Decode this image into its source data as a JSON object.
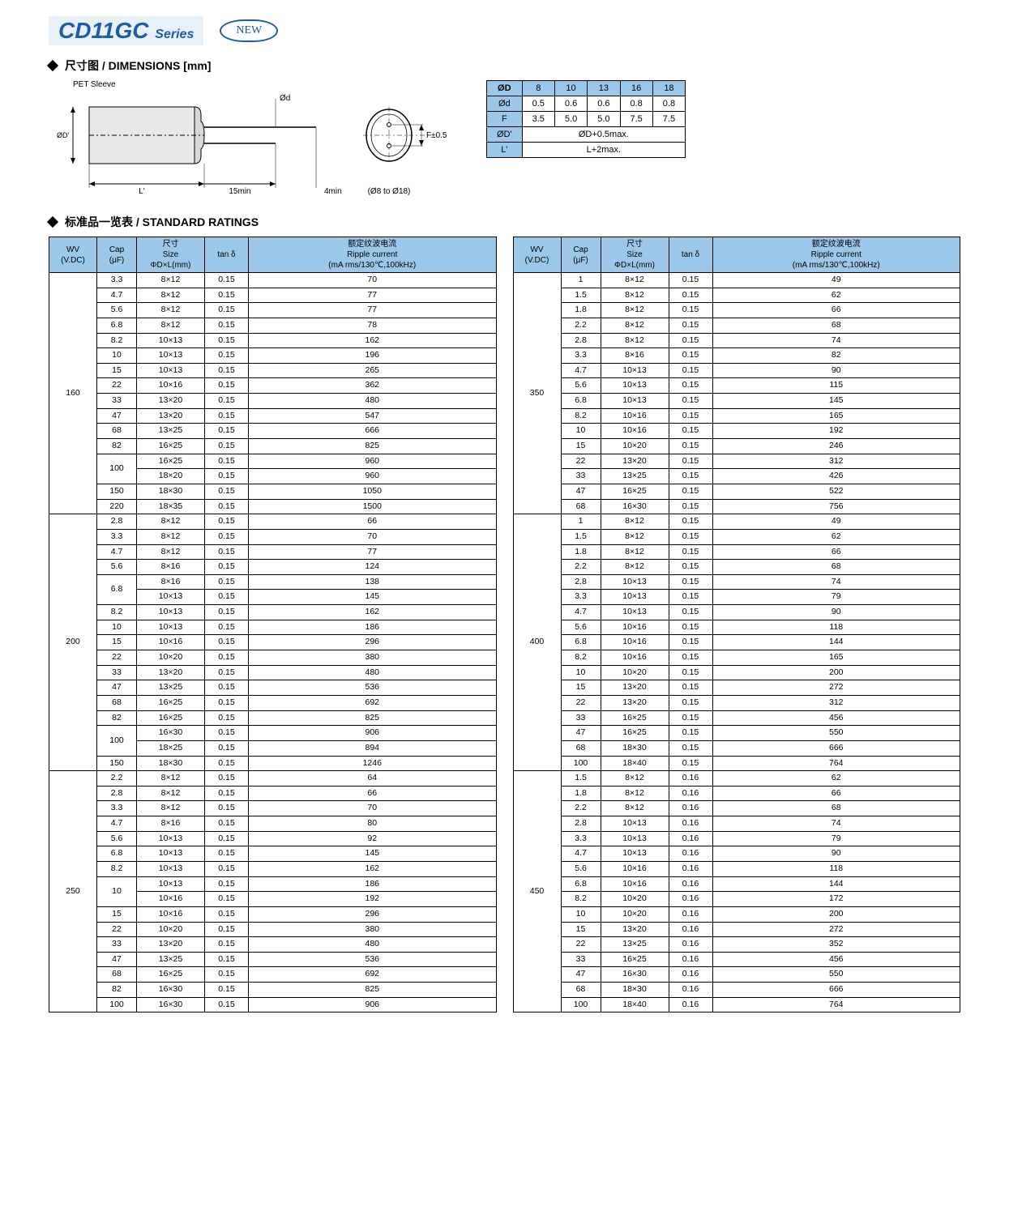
{
  "header": {
    "title_main": "CD11GC",
    "title_sub": "Series",
    "badge": "NEW"
  },
  "section_dimensions": "尺寸图 / DIMENSIONS [mm]",
  "section_ratings": "标准品一览表 / STANDARD RATINGS",
  "pet_label": "PET Sleeve",
  "drawing": {
    "d15": "15min",
    "d4": "4min",
    "L": "L'",
    "OD": "ØD'",
    "Od": "Ød",
    "F": "F±0.5",
    "range": "(Ø8 to Ø18)"
  },
  "dim_table": {
    "headers": [
      "ØD",
      "8",
      "10",
      "13",
      "16",
      "18"
    ],
    "rows": [
      [
        "Ød",
        "0.5",
        "0.6",
        "0.6",
        "0.8",
        "0.8"
      ],
      [
        "F",
        "3.5",
        "5.0",
        "5.0",
        "7.5",
        "7.5"
      ]
    ],
    "spanrows": [
      [
        "ØD'",
        "ØD+0.5max."
      ],
      [
        "L'",
        "L+2max."
      ]
    ]
  },
  "rating_headers": {
    "wv": "WV\n(V.DC)",
    "cap": "Cap\n(μF)",
    "size_top": "尺寸",
    "size_bot": "Size\nΦD×L(mm)",
    "tan": "tan δ",
    "ripple_top": "额定纹波电流",
    "ripple_bot": "Ripple current\n(mA rms/130℃,100kHz)"
  },
  "left_groups": [
    {
      "wv": "160",
      "rows": [
        [
          "3.3",
          "8×12",
          "0.15",
          "70"
        ],
        [
          "4.7",
          "8×12",
          "0.15",
          "77"
        ],
        [
          "5.6",
          "8×12",
          "0.15",
          "77"
        ],
        [
          "6.8",
          "8×12",
          "0.15",
          "78"
        ],
        [
          "8.2",
          "10×13",
          "0.15",
          "162"
        ],
        [
          "10",
          "10×13",
          "0.15",
          "196"
        ],
        [
          "15",
          "10×13",
          "0.15",
          "265"
        ],
        [
          "22",
          "10×16",
          "0.15",
          "362"
        ],
        [
          "33",
          "13×20",
          "0.15",
          "480"
        ],
        [
          "47",
          "13×20",
          "0.15",
          "547"
        ],
        [
          "68",
          "13×25",
          "0.15",
          "666"
        ],
        [
          "82",
          "16×25",
          "0.15",
          "825"
        ],
        [
          "100",
          "16×25",
          "0.15",
          "960",
          "cap2"
        ],
        [
          "",
          "18×20",
          "0.15",
          "960"
        ],
        [
          "150",
          "18×30",
          "0.15",
          "1050"
        ],
        [
          "220",
          "18×35",
          "0.15",
          "1500"
        ]
      ]
    },
    {
      "wv": "200",
      "rows": [
        [
          "2.8",
          "8×12",
          "0.15",
          "66"
        ],
        [
          "3.3",
          "8×12",
          "0.15",
          "70"
        ],
        [
          "4.7",
          "8×12",
          "0.15",
          "77"
        ],
        [
          "5.6",
          "8×16",
          "0.15",
          "124"
        ],
        [
          "6.8",
          "8×16",
          "0.15",
          "138",
          "cap2"
        ],
        [
          "",
          "10×13",
          "0.15",
          "145"
        ],
        [
          "8.2",
          "10×13",
          "0.15",
          "162"
        ],
        [
          "10",
          "10×13",
          "0.15",
          "186"
        ],
        [
          "15",
          "10×16",
          "0.15",
          "296"
        ],
        [
          "22",
          "10×20",
          "0.15",
          "380"
        ],
        [
          "33",
          "13×20",
          "0.15",
          "480"
        ],
        [
          "47",
          "13×25",
          "0.15",
          "536"
        ],
        [
          "68",
          "16×25",
          "0.15",
          "692"
        ],
        [
          "82",
          "16×25",
          "0.15",
          "825"
        ],
        [
          "100",
          "16×30",
          "0.15",
          "906",
          "cap2"
        ],
        [
          "",
          "18×25",
          "0.15",
          "894"
        ],
        [
          "150",
          "18×30",
          "0.15",
          "1246"
        ]
      ]
    },
    {
      "wv": "250",
      "rows": [
        [
          "2.2",
          "8×12",
          "0.15",
          "64"
        ],
        [
          "2.8",
          "8×12",
          "0.15",
          "66"
        ],
        [
          "3.3",
          "8×12",
          "0.15",
          "70"
        ],
        [
          "4.7",
          "8×16",
          "0.15",
          "80"
        ],
        [
          "5.6",
          "10×13",
          "0.15",
          "92"
        ],
        [
          "6.8",
          "10×13",
          "0.15",
          "145"
        ],
        [
          "8.2",
          "10×13",
          "0.15",
          "162"
        ],
        [
          "10",
          "10×13",
          "0.15",
          "186",
          "cap2"
        ],
        [
          "",
          "10×16",
          "0.15",
          "192"
        ],
        [
          "15",
          "10×16",
          "0.15",
          "296"
        ],
        [
          "22",
          "10×20",
          "0.15",
          "380"
        ],
        [
          "33",
          "13×20",
          "0.15",
          "480"
        ],
        [
          "47",
          "13×25",
          "0.15",
          "536"
        ],
        [
          "68",
          "16×25",
          "0.15",
          "692"
        ],
        [
          "82",
          "16×30",
          "0.15",
          "825"
        ],
        [
          "100",
          "16×30",
          "0.15",
          "906"
        ]
      ]
    }
  ],
  "right_groups": [
    {
      "wv": "350",
      "rows": [
        [
          "1",
          "8×12",
          "0.15",
          "49"
        ],
        [
          "1.5",
          "8×12",
          "0.15",
          "62"
        ],
        [
          "1.8",
          "8×12",
          "0.15",
          "66"
        ],
        [
          "2.2",
          "8×12",
          "0.15",
          "68"
        ],
        [
          "2.8",
          "8×12",
          "0.15",
          "74"
        ],
        [
          "3.3",
          "8×16",
          "0.15",
          "82"
        ],
        [
          "4.7",
          "10×13",
          "0.15",
          "90"
        ],
        [
          "5.6",
          "10×13",
          "0.15",
          "115"
        ],
        [
          "6.8",
          "10×13",
          "0.15",
          "145"
        ],
        [
          "8.2",
          "10×16",
          "0.15",
          "165"
        ],
        [
          "10",
          "10×16",
          "0.15",
          "192"
        ],
        [
          "15",
          "10×20",
          "0.15",
          "246"
        ],
        [
          "22",
          "13×20",
          "0.15",
          "312"
        ],
        [
          "33",
          "13×25",
          "0.15",
          "426"
        ],
        [
          "47",
          "16×25",
          "0.15",
          "522"
        ],
        [
          "68",
          "16×30",
          "0.15",
          "756"
        ]
      ]
    },
    {
      "wv": "400",
      "rows": [
        [
          "1",
          "8×12",
          "0.15",
          "49"
        ],
        [
          "1.5",
          "8×12",
          "0.15",
          "62"
        ],
        [
          "1.8",
          "8×12",
          "0.15",
          "66"
        ],
        [
          "2.2",
          "8×12",
          "0.15",
          "68"
        ],
        [
          "2.8",
          "10×13",
          "0.15",
          "74"
        ],
        [
          "3.3",
          "10×13",
          "0.15",
          "79"
        ],
        [
          "4.7",
          "10×13",
          "0.15",
          "90"
        ],
        [
          "5.6",
          "10×16",
          "0.15",
          "118"
        ],
        [
          "6.8",
          "10×16",
          "0.15",
          "144"
        ],
        [
          "8.2",
          "10×16",
          "0.15",
          "165"
        ],
        [
          "10",
          "10×20",
          "0.15",
          "200"
        ],
        [
          "15",
          "13×20",
          "0.15",
          "272"
        ],
        [
          "22",
          "13×20",
          "0.15",
          "312"
        ],
        [
          "33",
          "16×25",
          "0.15",
          "456"
        ],
        [
          "47",
          "16×25",
          "0.15",
          "550"
        ],
        [
          "68",
          "18×30",
          "0.15",
          "666"
        ],
        [
          "100",
          "18×40",
          "0.15",
          "764"
        ]
      ]
    },
    {
      "wv": "450",
      "rows": [
        [
          "1.5",
          "8×12",
          "0.16",
          "62"
        ],
        [
          "1.8",
          "8×12",
          "0.16",
          "66"
        ],
        [
          "2.2",
          "8×12",
          "0.16",
          "68"
        ],
        [
          "2.8",
          "10×13",
          "0.16",
          "74"
        ],
        [
          "3.3",
          "10×13",
          "0.16",
          "79"
        ],
        [
          "4.7",
          "10×13",
          "0.16",
          "90"
        ],
        [
          "5.6",
          "10×16",
          "0.16",
          "118"
        ],
        [
          "6.8",
          "10×16",
          "0.16",
          "144"
        ],
        [
          "8.2",
          "10×20",
          "0.16",
          "172"
        ],
        [
          "10",
          "10×20",
          "0.16",
          "200"
        ],
        [
          "15",
          "13×20",
          "0.16",
          "272"
        ],
        [
          "22",
          "13×25",
          "0.16",
          "352"
        ],
        [
          "33",
          "16×25",
          "0.16",
          "456"
        ],
        [
          "47",
          "16×30",
          "0.16",
          "550"
        ],
        [
          "68",
          "18×30",
          "0.16",
          "666"
        ],
        [
          "100",
          "18×40",
          "0.16",
          "764"
        ]
      ]
    }
  ]
}
